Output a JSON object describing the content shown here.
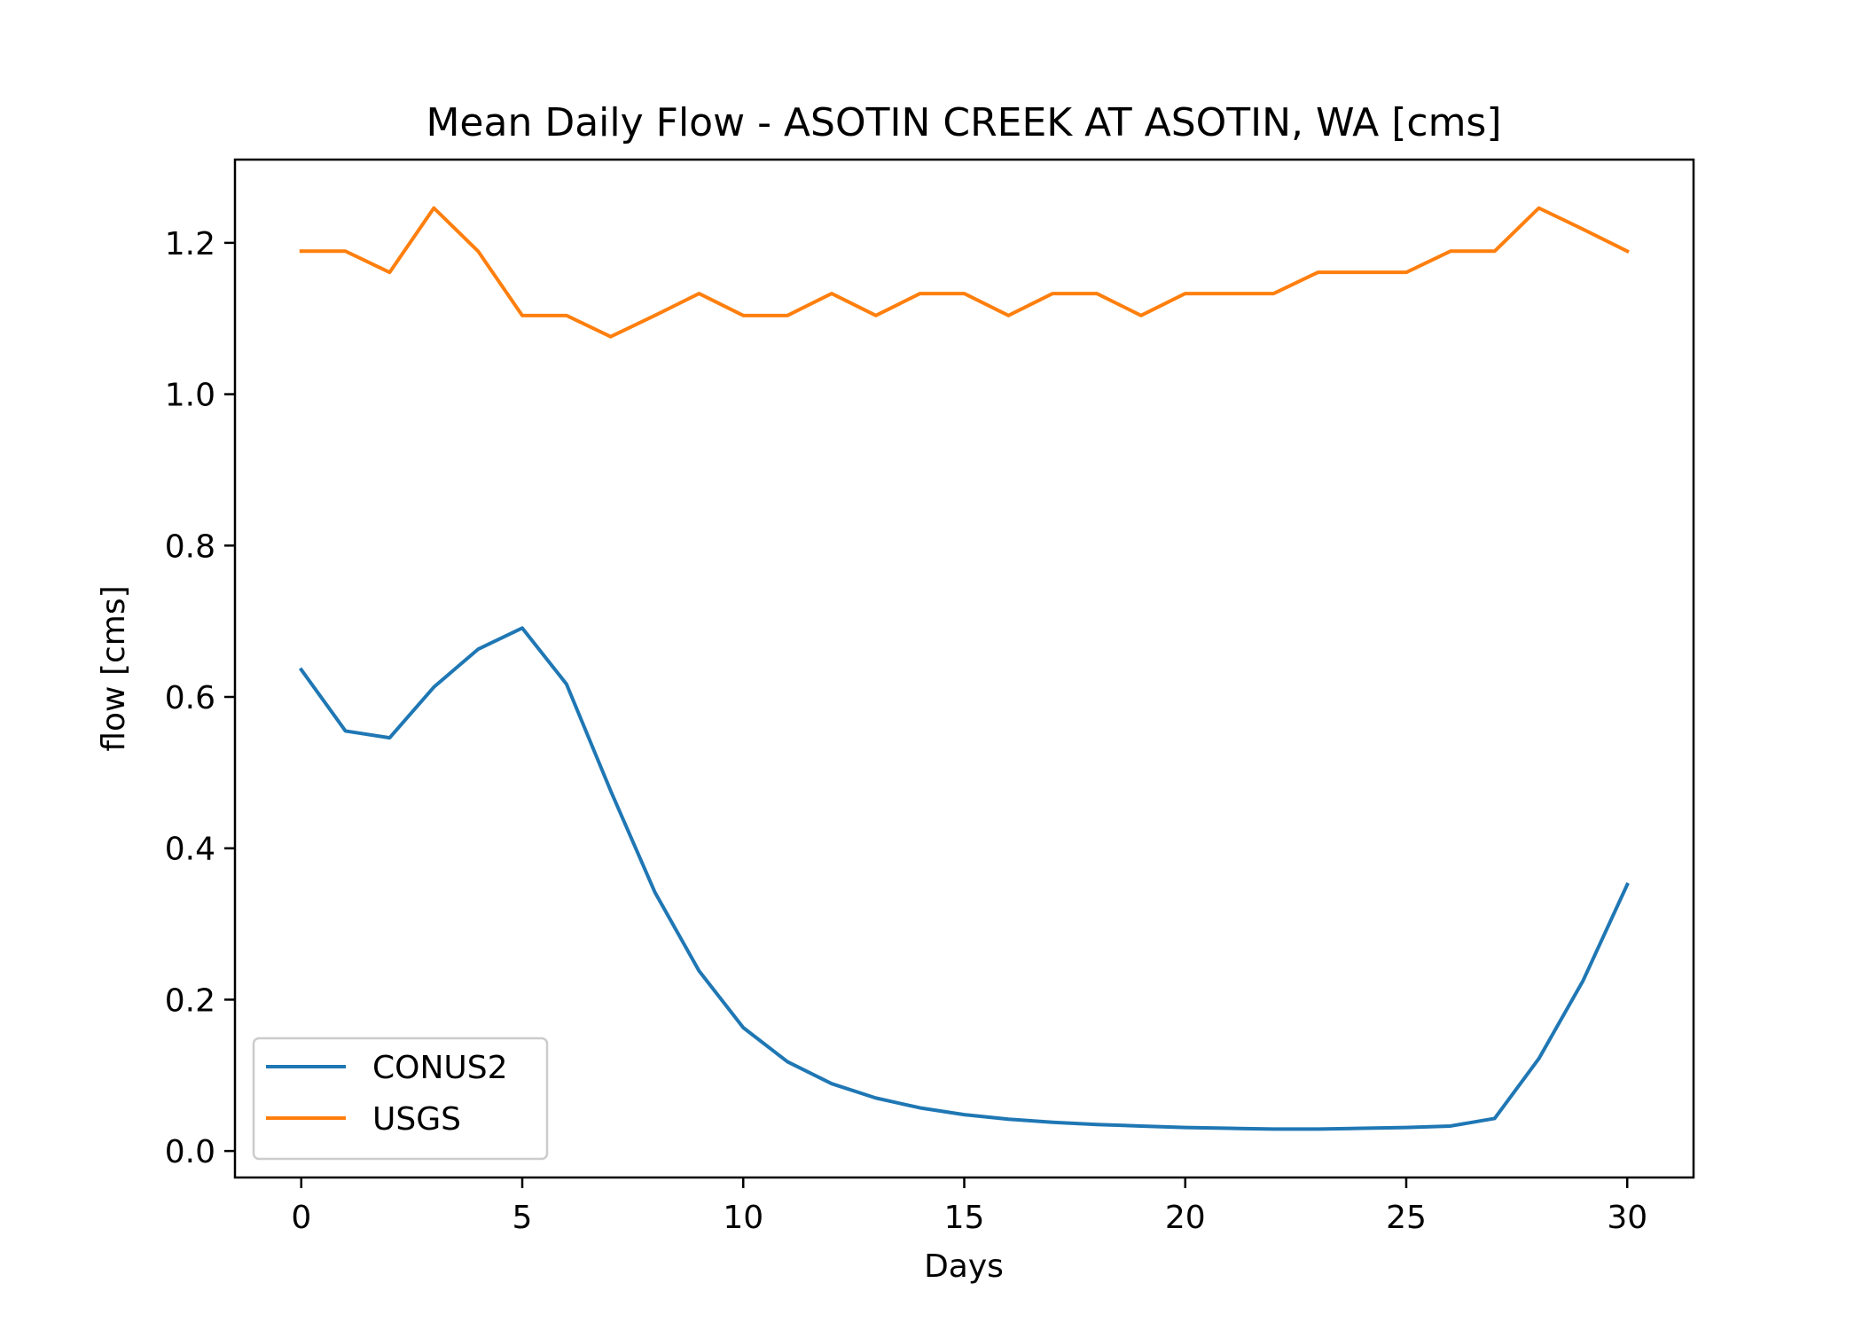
{
  "chart_data": {
    "type": "line",
    "title": "Mean Daily Flow - ASOTIN CREEK AT ASOTIN, WA [cms]",
    "xlabel": "Days",
    "ylabel": "flow [cms]",
    "xlim": [
      -1.5,
      31.5
    ],
    "ylim": [
      -0.035,
      1.31
    ],
    "xticks": [
      0,
      5,
      10,
      15,
      20,
      25,
      30
    ],
    "yticks": [
      0.0,
      0.2,
      0.4,
      0.6,
      0.8,
      1.0,
      1.2
    ],
    "ytick_labels": [
      "0.0",
      "0.2",
      "0.4",
      "0.6",
      "0.8",
      "1.0",
      "1.2"
    ],
    "grid": false,
    "legend_position": "lower-left",
    "x": [
      0,
      1,
      2,
      3,
      4,
      5,
      6,
      7,
      8,
      9,
      10,
      11,
      12,
      13,
      14,
      15,
      16,
      17,
      18,
      19,
      20,
      21,
      22,
      23,
      24,
      25,
      26,
      27,
      28,
      29,
      30
    ],
    "series": [
      {
        "name": "CONUS2",
        "color": "#1f77b4",
        "values": [
          0.636,
          0.555,
          0.546,
          0.613,
          0.663,
          0.691,
          0.617,
          0.476,
          0.342,
          0.238,
          0.163,
          0.118,
          0.089,
          0.07,
          0.057,
          0.048,
          0.042,
          0.038,
          0.035,
          0.033,
          0.031,
          0.03,
          0.029,
          0.029,
          0.03,
          0.031,
          0.033,
          0.043,
          0.122,
          0.225,
          0.352
        ]
      },
      {
        "name": "USGS",
        "color": "#ff7f0e",
        "values": [
          1.189,
          1.189,
          1.161,
          1.246,
          1.189,
          1.104,
          1.104,
          1.076,
          1.104,
          1.133,
          1.104,
          1.104,
          1.133,
          1.104,
          1.133,
          1.133,
          1.104,
          1.133,
          1.133,
          1.104,
          1.133,
          1.133,
          1.133,
          1.161,
          1.161,
          1.161,
          1.189,
          1.189,
          1.246,
          1.218,
          1.189
        ]
      }
    ]
  }
}
